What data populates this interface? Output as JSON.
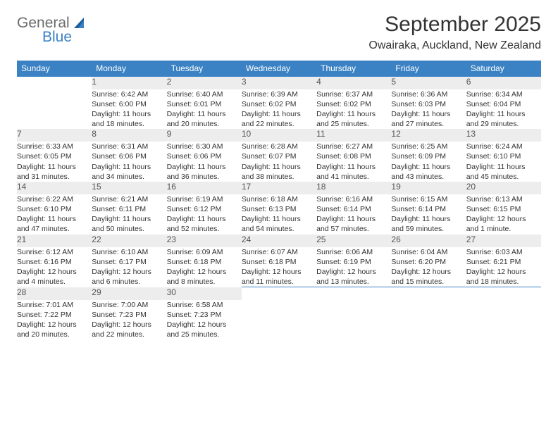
{
  "brand": {
    "top": "General",
    "bottom": "Blue"
  },
  "title": {
    "month": "September 2025",
    "location": "Owairaka, Auckland, New Zealand"
  },
  "weekdays": [
    "Sunday",
    "Monday",
    "Tuesday",
    "Wednesday",
    "Thursday",
    "Friday",
    "Saturday"
  ],
  "colors": {
    "header_bg": "#3b82c4",
    "header_text": "#ffffff",
    "daynum_bg": "#ededed",
    "row_rule": "#3b82c4",
    "body_text": "#333333",
    "logo_gray": "#6b6b6b",
    "logo_blue": "#3b82c4"
  },
  "weeks": [
    [
      null,
      {
        "n": "1",
        "sr": "Sunrise: 6:42 AM",
        "ss": "Sunset: 6:00 PM",
        "d1": "Daylight: 11 hours",
        "d2": "and 18 minutes."
      },
      {
        "n": "2",
        "sr": "Sunrise: 6:40 AM",
        "ss": "Sunset: 6:01 PM",
        "d1": "Daylight: 11 hours",
        "d2": "and 20 minutes."
      },
      {
        "n": "3",
        "sr": "Sunrise: 6:39 AM",
        "ss": "Sunset: 6:02 PM",
        "d1": "Daylight: 11 hours",
        "d2": "and 22 minutes."
      },
      {
        "n": "4",
        "sr": "Sunrise: 6:37 AM",
        "ss": "Sunset: 6:02 PM",
        "d1": "Daylight: 11 hours",
        "d2": "and 25 minutes."
      },
      {
        "n": "5",
        "sr": "Sunrise: 6:36 AM",
        "ss": "Sunset: 6:03 PM",
        "d1": "Daylight: 11 hours",
        "d2": "and 27 minutes."
      },
      {
        "n": "6",
        "sr": "Sunrise: 6:34 AM",
        "ss": "Sunset: 6:04 PM",
        "d1": "Daylight: 11 hours",
        "d2": "and 29 minutes."
      }
    ],
    [
      {
        "n": "7",
        "sr": "Sunrise: 6:33 AM",
        "ss": "Sunset: 6:05 PM",
        "d1": "Daylight: 11 hours",
        "d2": "and 31 minutes."
      },
      {
        "n": "8",
        "sr": "Sunrise: 6:31 AM",
        "ss": "Sunset: 6:06 PM",
        "d1": "Daylight: 11 hours",
        "d2": "and 34 minutes."
      },
      {
        "n": "9",
        "sr": "Sunrise: 6:30 AM",
        "ss": "Sunset: 6:06 PM",
        "d1": "Daylight: 11 hours",
        "d2": "and 36 minutes."
      },
      {
        "n": "10",
        "sr": "Sunrise: 6:28 AM",
        "ss": "Sunset: 6:07 PM",
        "d1": "Daylight: 11 hours",
        "d2": "and 38 minutes."
      },
      {
        "n": "11",
        "sr": "Sunrise: 6:27 AM",
        "ss": "Sunset: 6:08 PM",
        "d1": "Daylight: 11 hours",
        "d2": "and 41 minutes."
      },
      {
        "n": "12",
        "sr": "Sunrise: 6:25 AM",
        "ss": "Sunset: 6:09 PM",
        "d1": "Daylight: 11 hours",
        "d2": "and 43 minutes."
      },
      {
        "n": "13",
        "sr": "Sunrise: 6:24 AM",
        "ss": "Sunset: 6:10 PM",
        "d1": "Daylight: 11 hours",
        "d2": "and 45 minutes."
      }
    ],
    [
      {
        "n": "14",
        "sr": "Sunrise: 6:22 AM",
        "ss": "Sunset: 6:10 PM",
        "d1": "Daylight: 11 hours",
        "d2": "and 47 minutes."
      },
      {
        "n": "15",
        "sr": "Sunrise: 6:21 AM",
        "ss": "Sunset: 6:11 PM",
        "d1": "Daylight: 11 hours",
        "d2": "and 50 minutes."
      },
      {
        "n": "16",
        "sr": "Sunrise: 6:19 AM",
        "ss": "Sunset: 6:12 PM",
        "d1": "Daylight: 11 hours",
        "d2": "and 52 minutes."
      },
      {
        "n": "17",
        "sr": "Sunrise: 6:18 AM",
        "ss": "Sunset: 6:13 PM",
        "d1": "Daylight: 11 hours",
        "d2": "and 54 minutes."
      },
      {
        "n": "18",
        "sr": "Sunrise: 6:16 AM",
        "ss": "Sunset: 6:14 PM",
        "d1": "Daylight: 11 hours",
        "d2": "and 57 minutes."
      },
      {
        "n": "19",
        "sr": "Sunrise: 6:15 AM",
        "ss": "Sunset: 6:14 PM",
        "d1": "Daylight: 11 hours",
        "d2": "and 59 minutes."
      },
      {
        "n": "20",
        "sr": "Sunrise: 6:13 AM",
        "ss": "Sunset: 6:15 PM",
        "d1": "Daylight: 12 hours",
        "d2": "and 1 minute."
      }
    ],
    [
      {
        "n": "21",
        "sr": "Sunrise: 6:12 AM",
        "ss": "Sunset: 6:16 PM",
        "d1": "Daylight: 12 hours",
        "d2": "and 4 minutes."
      },
      {
        "n": "22",
        "sr": "Sunrise: 6:10 AM",
        "ss": "Sunset: 6:17 PM",
        "d1": "Daylight: 12 hours",
        "d2": "and 6 minutes."
      },
      {
        "n": "23",
        "sr": "Sunrise: 6:09 AM",
        "ss": "Sunset: 6:18 PM",
        "d1": "Daylight: 12 hours",
        "d2": "and 8 minutes."
      },
      {
        "n": "24",
        "sr": "Sunrise: 6:07 AM",
        "ss": "Sunset: 6:18 PM",
        "d1": "Daylight: 12 hours",
        "d2": "and 11 minutes."
      },
      {
        "n": "25",
        "sr": "Sunrise: 6:06 AM",
        "ss": "Sunset: 6:19 PM",
        "d1": "Daylight: 12 hours",
        "d2": "and 13 minutes."
      },
      {
        "n": "26",
        "sr": "Sunrise: 6:04 AM",
        "ss": "Sunset: 6:20 PM",
        "d1": "Daylight: 12 hours",
        "d2": "and 15 minutes."
      },
      {
        "n": "27",
        "sr": "Sunrise: 6:03 AM",
        "ss": "Sunset: 6:21 PM",
        "d1": "Daylight: 12 hours",
        "d2": "and 18 minutes."
      }
    ],
    [
      {
        "n": "28",
        "sr": "Sunrise: 7:01 AM",
        "ss": "Sunset: 7:22 PM",
        "d1": "Daylight: 12 hours",
        "d2": "and 20 minutes."
      },
      {
        "n": "29",
        "sr": "Sunrise: 7:00 AM",
        "ss": "Sunset: 7:23 PM",
        "d1": "Daylight: 12 hours",
        "d2": "and 22 minutes."
      },
      {
        "n": "30",
        "sr": "Sunrise: 6:58 AM",
        "ss": "Sunset: 7:23 PM",
        "d1": "Daylight: 12 hours",
        "d2": "and 25 minutes."
      },
      null,
      null,
      null,
      null
    ]
  ]
}
